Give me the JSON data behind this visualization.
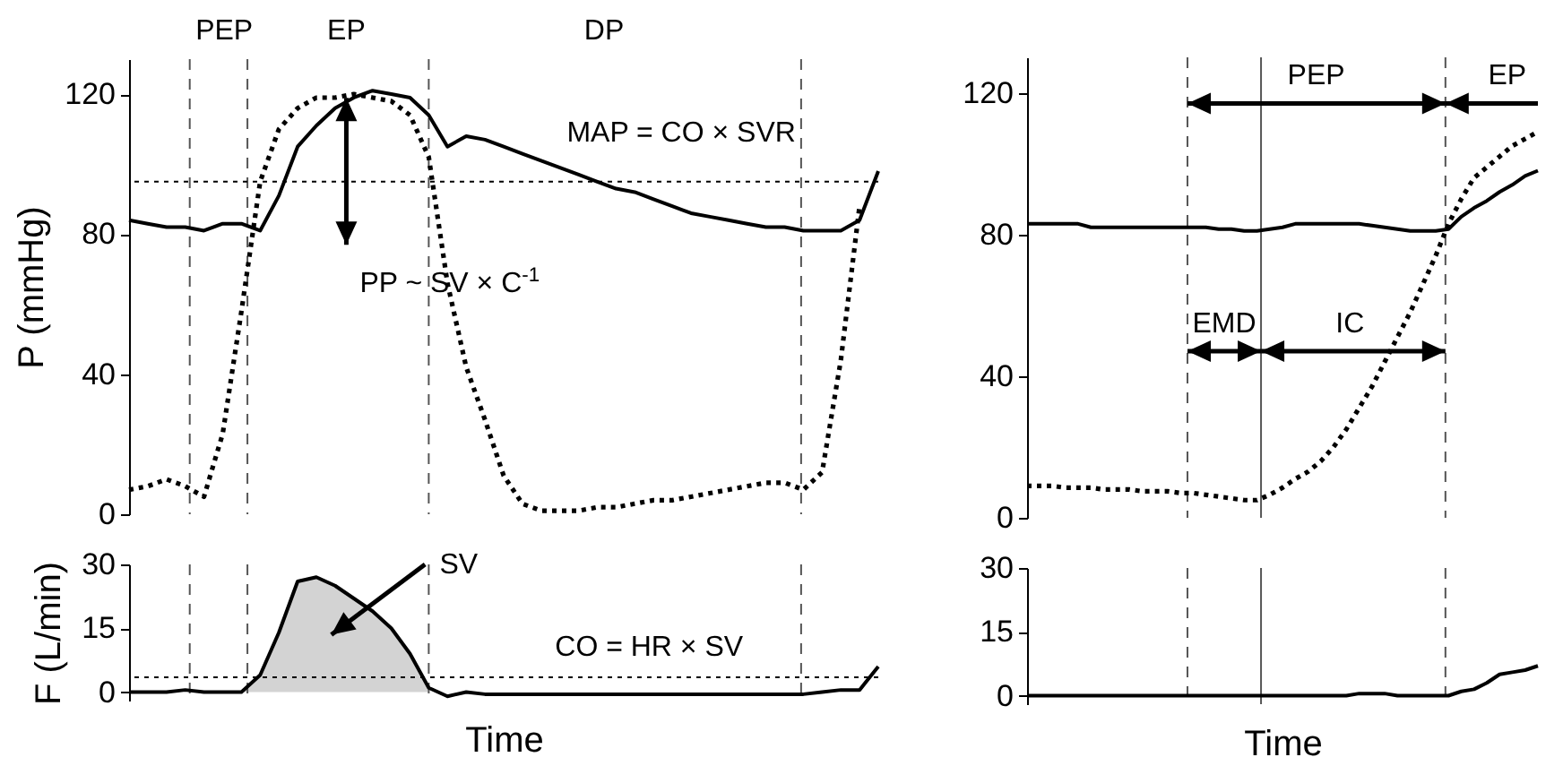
{
  "chart_data": [
    {
      "type": "line",
      "ylabel": "P (mmHg)",
      "categories": [
        null,
        null,
        null,
        null,
        null,
        null,
        null,
        null,
        null,
        null,
        null,
        null,
        null,
        null,
        null,
        null,
        null,
        null,
        null,
        null,
        null,
        null,
        null,
        null,
        null,
        null,
        null,
        null,
        null,
        null,
        null,
        null,
        null,
        null,
        null,
        null,
        null,
        null,
        null,
        null,
        null
      ],
      "ylim": [
        0,
        130
      ],
      "yticks": [
        0,
        40,
        80,
        120
      ],
      "tick_labels": "y",
      "series": [
        {
          "color": "#000000",
          "line_style": "solid",
          "values": [
            84,
            83,
            82,
            82,
            81,
            83,
            83,
            81,
            91,
            105,
            111,
            116,
            119,
            121,
            120,
            119,
            114,
            105,
            108,
            107,
            105,
            103,
            101,
            99,
            97,
            95,
            93,
            92,
            90,
            88,
            86,
            85,
            84,
            83,
            82,
            82,
            81,
            81,
            81,
            84,
            98
          ]
        },
        {
          "color": "#000000",
          "line_style": "dotted",
          "values": [
            7,
            8,
            10,
            8,
            5,
            23,
            58,
            95,
            110,
            116,
            119,
            119,
            120,
            119,
            118,
            114,
            102,
            66,
            42,
            27,
            11,
            3,
            1,
            1,
            1,
            2,
            2,
            3,
            4,
            4,
            5,
            6,
            7,
            8,
            9,
            9,
            7,
            12,
            44,
            88,
            null
          ]
        }
      ],
      "ref_lines": [
        {
          "axis": "y",
          "value": 95,
          "color": "#000000",
          "line_style": "dotted"
        }
      ],
      "annotations": [
        "PEP",
        "EP",
        "DP",
        "MAP = CO × SVR",
        "PP ~ SV × C$^{-1}$"
      ]
    },
    {
      "type": "line",
      "ylabel": "F (L/min)",
      "xlabel": "Time",
      "categories": [
        null,
        null,
        null,
        null,
        null,
        null,
        null,
        null,
        null,
        null,
        null,
        null,
        null,
        null,
        null,
        null,
        null,
        null,
        null,
        null,
        null,
        null,
        null,
        null,
        null,
        null,
        null,
        null,
        null,
        null,
        null,
        null,
        null,
        null,
        null,
        null,
        null,
        null,
        null,
        null,
        null
      ],
      "ylim": [
        -2,
        30
      ],
      "yticks": [
        0,
        15,
        30
      ],
      "tick_labels": "y",
      "series": [
        {
          "color": "#000000",
          "line_style": "solid",
          "values": [
            0,
            0,
            0,
            0.5,
            0,
            0,
            0,
            4,
            14,
            26,
            27,
            25,
            22,
            19,
            15,
            9,
            1,
            -1,
            0,
            -0.5,
            -0.5,
            -0.5,
            -0.5,
            -0.5,
            -0.5,
            -0.5,
            -0.5,
            -0.5,
            -0.5,
            -0.5,
            -0.5,
            -0.5,
            -0.5,
            -0.5,
            -0.5,
            -0.5,
            -0.5,
            0,
            0.5,
            0.5,
            6
          ],
          "lower": [
            null,
            null,
            null,
            null,
            null,
            null,
            0,
            0,
            0,
            0,
            0,
            0,
            0,
            0,
            0,
            0,
            0,
            null,
            null,
            null,
            null,
            null,
            null,
            null,
            null,
            null,
            null,
            null,
            null,
            null,
            null,
            null,
            null,
            null,
            null,
            null,
            null,
            null,
            null,
            null,
            null
          ],
          "upper": [
            null,
            null,
            null,
            null,
            null,
            null,
            0,
            4,
            14,
            26,
            27,
            25,
            22,
            19,
            15,
            9,
            1,
            null,
            null,
            null,
            null,
            null,
            null,
            null,
            null,
            null,
            null,
            null,
            null,
            null,
            null,
            null,
            null,
            null,
            null,
            null,
            null,
            null,
            null,
            null,
            null
          ]
        }
      ],
      "ref_lines": [
        {
          "axis": "y",
          "value": 3.5,
          "color": "#000000",
          "line_style": "dotted"
        }
      ],
      "annotations": [
        "SV",
        "CO = HR × SV"
      ]
    },
    {
      "type": "line",
      "categories": [
        null,
        null,
        null,
        null,
        null,
        null,
        null,
        null,
        null,
        null,
        null,
        null,
        null,
        null,
        null,
        null,
        null,
        null,
        null,
        null,
        null,
        null,
        null,
        null,
        null,
        null,
        null,
        null,
        null,
        null,
        null,
        null,
        null,
        null,
        null,
        null,
        null,
        null,
        null,
        null,
        null
      ],
      "ylim": [
        0,
        130
      ],
      "yticks": [
        0,
        40,
        80,
        120
      ],
      "tick_labels": "y",
      "series": [
        {
          "color": "#000000",
          "line_style": "solid",
          "values": [
            83,
            83,
            83,
            83,
            83,
            82,
            82,
            82,
            82,
            82,
            82,
            82,
            82,
            82,
            82,
            81.5,
            81.5,
            81,
            81,
            81.5,
            82,
            83,
            83,
            83,
            83,
            83,
            83,
            82.5,
            82,
            81.5,
            81,
            81,
            81,
            81.5,
            85,
            87.5,
            89.5,
            92,
            94,
            96.5,
            98
          ]
        },
        {
          "color": "#000000",
          "line_style": "dotted",
          "values": [
            9,
            9,
            9,
            8.5,
            8.5,
            8.5,
            8,
            8,
            8,
            7.5,
            7.5,
            7.5,
            7,
            7,
            6.5,
            6,
            5.5,
            5,
            5,
            6.5,
            8.5,
            11,
            13,
            16,
            20,
            25,
            31,
            37,
            44,
            51,
            58,
            66,
            74,
            83,
            90,
            96,
            99,
            102,
            105,
            107,
            109
          ]
        }
      ],
      "annotations": [
        "PEP",
        "EP",
        "EMD",
        "IC"
      ]
    },
    {
      "type": "line",
      "xlabel": "Time",
      "categories": [
        null,
        null,
        null,
        null,
        null,
        null,
        null,
        null,
        null,
        null,
        null,
        null,
        null,
        null,
        null,
        null,
        null,
        null,
        null,
        null,
        null,
        null,
        null,
        null,
        null,
        null,
        null,
        null,
        null,
        null,
        null,
        null,
        null,
        null,
        null,
        null,
        null,
        null,
        null,
        null,
        null
      ],
      "ylim": [
        -2,
        30
      ],
      "yticks": [
        0,
        15,
        30
      ],
      "tick_labels": "y",
      "series": [
        {
          "color": "#000000",
          "line_style": "solid",
          "values": [
            0,
            0,
            0,
            0,
            0,
            0,
            0,
            0,
            0,
            0,
            0,
            0,
            0,
            0,
            0,
            0,
            0,
            0,
            0,
            0,
            0,
            0,
            0,
            0,
            0,
            0,
            0.5,
            0.5,
            0.5,
            0,
            0,
            0,
            0,
            0,
            1,
            1.5,
            3,
            5,
            5.5,
            6,
            7
          ]
        }
      ]
    }
  ]
}
